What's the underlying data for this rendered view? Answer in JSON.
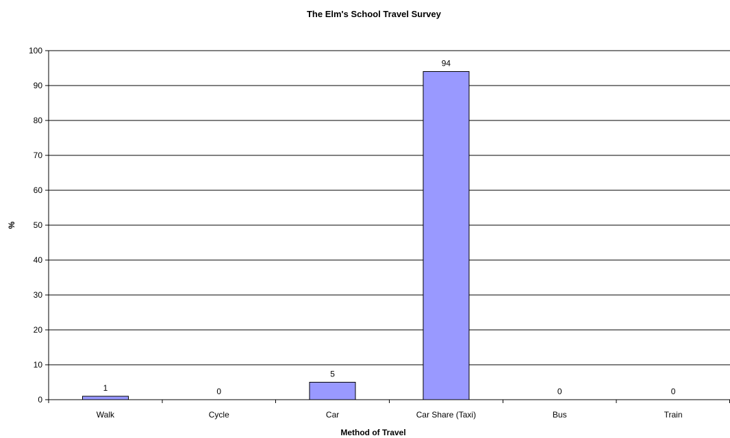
{
  "chart_data": {
    "type": "bar",
    "title": "The Elm's School Travel Survey",
    "xlabel": "Method of Travel",
    "ylabel": "%",
    "categories": [
      "Walk",
      "Cycle",
      "Car",
      "Car Share (Taxi)",
      "Bus",
      "Train"
    ],
    "values": [
      1,
      0,
      5,
      94,
      0,
      0
    ],
    "data_labels": [
      "1",
      "0",
      "5",
      "94",
      "0",
      "0"
    ],
    "ylim": [
      0,
      100
    ],
    "yticks": [
      0,
      10,
      20,
      30,
      40,
      50,
      60,
      70,
      80,
      90,
      100
    ],
    "ytick_labels": [
      "0",
      "10",
      "20",
      "30",
      "40",
      "50",
      "60",
      "70",
      "80",
      "90",
      "100"
    ],
    "grid": true,
    "legend": "none",
    "colors": {
      "bar_fill": "#9999ff",
      "bar_stroke": "#000000",
      "gridline": "#000000",
      "axis": "#000000",
      "background": "#ffffff"
    }
  }
}
